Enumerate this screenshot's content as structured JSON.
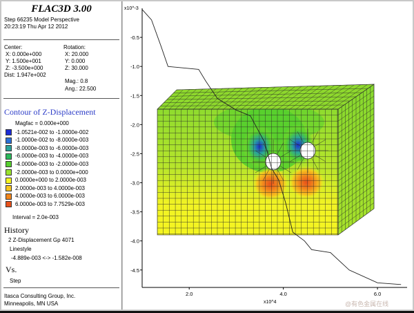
{
  "app_title": "FLAC3D 3.00",
  "header": {
    "step": "Step 66235  Model Perspective",
    "timestamp": "20:23:19 Thu Apr 12 2012"
  },
  "view": {
    "center_label": "Center:",
    "center_x": "X: 0.000e+000",
    "center_y": "Y: 1.500e+001",
    "center_z": "Z: -3.500e+000",
    "dist": "Dist: 1.947e+002",
    "rotation_label": "Rotation:",
    "rot_x": "X:  20.000",
    "rot_y": "Y:   0.000",
    "rot_z": "Z:  30.000",
    "mag": "Mag.:      0.8",
    "ang": "Ang.:  22.500"
  },
  "contour": {
    "title": "Contour of Z-Displacement",
    "magfac": "Magfac = 0.000e+000",
    "items": [
      {
        "range": "-1.0521e-002 to -1.0000e-002",
        "color": "#1c2bd6"
      },
      {
        "range": "-1.0000e-002 to -8.0000e-003",
        "color": "#2a6fd8"
      },
      {
        "range": "-8.0000e-003 to -6.0000e-003",
        "color": "#2aa39a"
      },
      {
        "range": "-6.0000e-003 to -4.0000e-003",
        "color": "#2bb85a"
      },
      {
        "range": "-4.0000e-003 to -2.0000e-003",
        "color": "#56cf2e"
      },
      {
        "range": "-2.0000e-003 to  0.0000e+000",
        "color": "#9ae22e"
      },
      {
        "range": " 0.0000e+000 to  2.0000e-003",
        "color": "#f5f521"
      },
      {
        "range": " 2.0000e-003 to  4.0000e-003",
        "color": "#f6c51f"
      },
      {
        "range": " 4.0000e-003 to  6.0000e-003",
        "color": "#f2861c"
      },
      {
        "range": " 6.0000e-003 to  7.7529e-003",
        "color": "#e8511a"
      }
    ],
    "interval": "Interval =  2.0e-003"
  },
  "history": {
    "title": "History",
    "item": "2 Z-Displacement Gp 4071",
    "linestyle_label": "Linestyle",
    "range": "-4.889e-003 <-> -1.582e-008",
    "vs_label": "Vs.",
    "vs_value": "Step"
  },
  "footer": {
    "company": "Itasca Consulting Group, Inc.",
    "location": "Minneapolis, MN  USA"
  },
  "plot": {
    "y_exponent": "x10^-3",
    "x_exponent": "x10^4",
    "y_ticks": [
      {
        "value": -0.5,
        "label": "-0.5"
      },
      {
        "value": -1.0,
        "label": "-1.0"
      },
      {
        "value": -1.5,
        "label": "-1.5"
      },
      {
        "value": -2.0,
        "label": "-2.0"
      },
      {
        "value": -2.5,
        "label": "-2.5"
      },
      {
        "value": -3.0,
        "label": "-3.0"
      },
      {
        "value": -3.5,
        "label": "-3.5"
      },
      {
        "value": -4.0,
        "label": "-4.0"
      },
      {
        "value": -4.5,
        "label": "-4.5"
      }
    ],
    "x_ticks": [
      {
        "value": 2.0,
        "label": "2.0"
      },
      {
        "value": 4.0,
        "label": "4.0"
      },
      {
        "value": 6.0,
        "label": "6.0"
      }
    ],
    "history_curve": [
      [
        1.0,
        -0.02
      ],
      [
        1.2,
        -0.2
      ],
      [
        1.4,
        -0.65
      ],
      [
        1.55,
        -1.0
      ],
      [
        2.2,
        -1.05
      ],
      [
        2.35,
        -1.25
      ],
      [
        2.6,
        -1.55
      ],
      [
        3.0,
        -1.75
      ],
      [
        3.3,
        -1.85
      ],
      [
        3.6,
        -2.3
      ],
      [
        3.75,
        -2.75
      ],
      [
        3.9,
        -2.95
      ],
      [
        4.05,
        -3.35
      ],
      [
        4.2,
        -3.85
      ],
      [
        4.45,
        -4.0
      ],
      [
        4.6,
        -4.15
      ],
      [
        5.0,
        -4.2
      ],
      [
        5.4,
        -4.5
      ],
      [
        6.0,
        -4.72
      ],
      [
        6.5,
        -4.75
      ]
    ]
  },
  "watermark": "@有色金属在线"
}
